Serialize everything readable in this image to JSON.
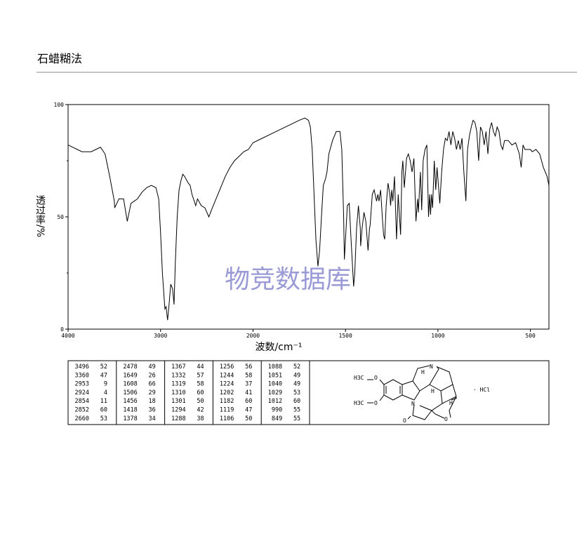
{
  "header": {
    "title": "石蜡糊法"
  },
  "chart_data": {
    "type": "line",
    "xlabel": "波数/cm⁻¹",
    "ylabel": "透过率/%",
    "watermark": "物竞数据库",
    "xlim": [
      4000,
      400
    ],
    "x_scale_change": {
      "at": 2000,
      "ratio": 2
    },
    "xticks": [
      4000,
      3000,
      2000,
      1500,
      1000,
      500
    ],
    "ylim": [
      0,
      100
    ],
    "yticks": [
      0,
      50,
      100
    ],
    "y_minor_ticks": [
      25,
      75
    ],
    "series": [
      {
        "color": "#000000",
        "x": [
          4000,
          3950,
          3900,
          3850,
          3750,
          3700,
          3650,
          3600,
          3550,
          3500,
          3496,
          3450,
          3400,
          3360,
          3320,
          3250,
          3200,
          3150,
          3100,
          3050,
          3020,
          3000,
          2980,
          2953,
          2940,
          2924,
          2910,
          2890,
          2870,
          2854,
          2840,
          2820,
          2800,
          2780,
          2760,
          2740,
          2700,
          2680,
          2660,
          2620,
          2600,
          2560,
          2520,
          2478,
          2440,
          2400,
          2350,
          2300,
          2250,
          2200,
          2150,
          2100,
          2050,
          2000,
          1950,
          1900,
          1850,
          1800,
          1750,
          1720,
          1700,
          1690,
          1680,
          1670,
          1660,
          1649,
          1640,
          1630,
          1620,
          1608,
          1600,
          1590,
          1570,
          1550,
          1530,
          1520,
          1510,
          1506,
          1500,
          1490,
          1480,
          1470,
          1460,
          1456,
          1450,
          1440,
          1430,
          1420,
          1418,
          1410,
          1400,
          1390,
          1378,
          1370,
          1367,
          1355,
          1345,
          1332,
          1325,
          1319,
          1310,
          1301,
          1294,
          1288,
          1280,
          1270,
          1260,
          1256,
          1250,
          1244,
          1235,
          1224,
          1215,
          1202,
          1195,
          1190,
          1182,
          1170,
          1160,
          1150,
          1140,
          1130,
          1119,
          1110,
          1106,
          1095,
          1088,
          1080,
          1070,
          1060,
          1051,
          1045,
          1040,
          1035,
          1029,
          1020,
          1012,
          1005,
          990,
          980,
          970,
          960,
          950,
          940,
          930,
          920,
          910,
          900,
          890,
          880,
          870,
          860,
          849,
          840,
          830,
          820,
          810,
          800,
          790,
          780,
          770,
          760,
          750,
          740,
          730,
          720,
          710,
          700,
          690,
          680,
          670,
          660,
          650,
          640,
          620,
          600,
          580,
          560,
          550,
          540,
          530,
          510,
          500,
          490,
          470,
          450,
          430,
          410,
          400
        ],
        "values": [
          82,
          81,
          80,
          79,
          79,
          80,
          81,
          78,
          68,
          57,
          54,
          58,
          58,
          48,
          56,
          58,
          61,
          63,
          64,
          63,
          58,
          43,
          25,
          9,
          10,
          4,
          10,
          20,
          18,
          11,
          30,
          50,
          62,
          66,
          69,
          68,
          65,
          64,
          60,
          55,
          58,
          55,
          54,
          50,
          54,
          58,
          63,
          68,
          72,
          75,
          77,
          79,
          80,
          83,
          85,
          87,
          89,
          91,
          93,
          94,
          93,
          90,
          80,
          60,
          40,
          28,
          35,
          50,
          64,
          67,
          70,
          78,
          84,
          88,
          88,
          80,
          50,
          31,
          40,
          55,
          56,
          40,
          25,
          19,
          25,
          45,
          55,
          45,
          37,
          45,
          52,
          48,
          35,
          45,
          46,
          60,
          62,
          57,
          60,
          57,
          62,
          50,
          42,
          40,
          55,
          65,
          60,
          55,
          62,
          57,
          68,
          40,
          60,
          42,
          70,
          75,
          63,
          76,
          78,
          75,
          70,
          76,
          48,
          58,
          52,
          70,
          53,
          75,
          80,
          82,
          50,
          60,
          51,
          60,
          54,
          75,
          62,
          72,
          56,
          70,
          80,
          85,
          84,
          88,
          82,
          88,
          85,
          80,
          84,
          80,
          85,
          70,
          57,
          80,
          86,
          90,
          93,
          92,
          88,
          75,
          90,
          88,
          82,
          88,
          78,
          89,
          92,
          88,
          86,
          90,
          88,
          82,
          80,
          84,
          84,
          82,
          83,
          78,
          72,
          82,
          80,
          80,
          80,
          79,
          80,
          78,
          72,
          68,
          64
        ]
      }
    ]
  },
  "peak_table": {
    "rows": [
      [
        [
          "3496",
          "52"
        ],
        [
          "2478",
          "49"
        ],
        [
          "1367",
          "44"
        ],
        [
          "1256",
          "56"
        ],
        [
          "1088",
          "52"
        ]
      ],
      [
        [
          "3360",
          "47"
        ],
        [
          "1649",
          "26"
        ],
        [
          "1332",
          "57"
        ],
        [
          "1244",
          "58"
        ],
        [
          "1051",
          "49"
        ]
      ],
      [
        [
          "2953",
          "9"
        ],
        [
          "1608",
          "66"
        ],
        [
          "1319",
          "58"
        ],
        [
          "1224",
          "37"
        ],
        [
          "1040",
          "49"
        ]
      ],
      [
        [
          "2924",
          "4"
        ],
        [
          "1506",
          "29"
        ],
        [
          "1310",
          "60"
        ],
        [
          "1202",
          "41"
        ],
        [
          "1029",
          "53"
        ]
      ],
      [
        [
          "2854",
          "11"
        ],
        [
          "1456",
          "18"
        ],
        [
          "1301",
          "50"
        ],
        [
          "1182",
          "60"
        ],
        [
          "1012",
          "60"
        ]
      ],
      [
        [
          "2852",
          "60"
        ],
        [
          "1418",
          "36"
        ],
        [
          "1294",
          "42"
        ],
        [
          "1119",
          "47"
        ],
        [
          "990",
          "55"
        ]
      ],
      [
        [
          "2660",
          "53"
        ],
        [
          "1378",
          "34"
        ],
        [
          "1288",
          "38"
        ],
        [
          "1106",
          "50"
        ],
        [
          "849",
          "55"
        ]
      ]
    ]
  },
  "structure": {
    "labels": [
      "H3C",
      "O",
      "H3C",
      "O",
      "N",
      "N",
      "O",
      "O",
      "H",
      "H",
      "H",
      "· HCl"
    ]
  }
}
